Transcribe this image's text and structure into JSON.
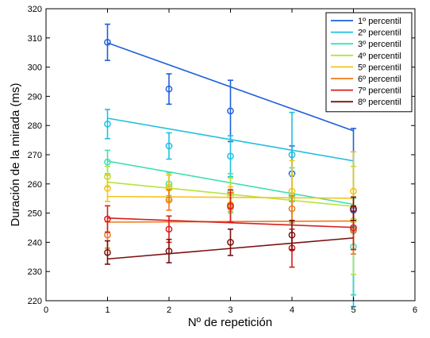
{
  "chart_data": {
    "type": "line",
    "xlabel": "Nº de repetición",
    "ylabel": "Duración de la mirada (ms)",
    "xlim": [
      0,
      6
    ],
    "ylim": [
      220,
      320
    ],
    "xticks": [
      0,
      1,
      2,
      3,
      4,
      5,
      6
    ],
    "yticks": [
      220,
      230,
      240,
      250,
      260,
      270,
      280,
      290,
      300,
      310,
      320
    ],
    "legend_position": "top-right",
    "grid": false,
    "x": [
      1,
      2,
      3,
      4,
      5
    ],
    "series": [
      {
        "name": "1º percentil",
        "color": "#1f5fdc",
        "values": [
          308.5,
          292.5,
          285.0,
          263.5,
          251.0
        ],
        "err_low": [
          302.3,
          287.3,
          274.5,
          254.0,
          222.0
        ],
        "err_high": [
          314.7,
          297.7,
          295.5,
          273.0,
          279.0
        ],
        "fit": [
          308.3,
          278.2
        ]
      },
      {
        "name": "2º percentil",
        "color": "#1fbfe0",
        "values": [
          280.5,
          273.0,
          269.5,
          270.0,
          244.5
        ],
        "err_low": [
          275.5,
          268.5,
          262.5,
          255.5,
          218.0
        ],
        "err_high": [
          285.5,
          277.5,
          276.5,
          284.5,
          271.0
        ],
        "fit": [
          282.5,
          267.9
        ]
      },
      {
        "name": "3º percentil",
        "color": "#3fe0b4",
        "values": [
          267.5,
          260.0,
          257.0,
          256.0,
          238.5
        ],
        "err_low": [
          263.5,
          256.0,
          250.5,
          246.5,
          222.0
        ],
        "err_high": [
          271.5,
          264.0,
          263.5,
          265.5,
          255.0
        ],
        "fit": [
          267.8,
          253.0
        ]
      },
      {
        "name": "4º percentil",
        "color": "#b6e43a",
        "values": [
          262.5,
          259.0,
          256.0,
          255.0,
          247.5
        ],
        "err_low": [
          259.0,
          254.5,
          250.0,
          247.0,
          229.0
        ],
        "err_high": [
          266.0,
          263.5,
          262.0,
          263.0,
          266.0
        ],
        "fit": [
          260.6,
          252.3
        ]
      },
      {
        "name": "5º percentil",
        "color": "#f5c21b",
        "values": [
          258.5,
          258.5,
          253.0,
          257.5,
          257.5
        ],
        "err_low": [
          254.0,
          254.0,
          247.0,
          247.0,
          244.0
        ],
        "err_high": [
          263.0,
          263.0,
          259.0,
          268.0,
          271.0
        ],
        "fit": [
          255.7,
          255.1
        ]
      },
      {
        "name": "6º percentil",
        "color": "#ef7a1a",
        "values": [
          242.5,
          254.5,
          252.0,
          251.5,
          244.0
        ],
        "err_low": [
          238.0,
          251.0,
          247.0,
          247.0,
          236.0
        ],
        "err_high": [
          247.0,
          258.0,
          257.0,
          256.0,
          252.0
        ],
        "fit": [
          246.9,
          247.3
        ]
      },
      {
        "name": "7º percentil",
        "color": "#d81e1e",
        "values": [
          248.0,
          244.5,
          252.5,
          238.0,
          245.0
        ],
        "err_low": [
          243.5,
          240.0,
          247.0,
          231.5,
          237.5
        ],
        "err_high": [
          252.5,
          249.0,
          258.0,
          244.5,
          252.5
        ],
        "fit": [
          248.3,
          245.1
        ]
      },
      {
        "name": "8º percentil",
        "color": "#7a1010",
        "values": [
          236.5,
          237.0,
          240.0,
          242.5,
          251.5
        ],
        "err_low": [
          232.5,
          233.0,
          235.5,
          237.5,
          247.5
        ],
        "err_high": [
          240.5,
          241.0,
          244.5,
          247.5,
          255.5
        ],
        "fit": [
          234.3,
          241.5
        ]
      }
    ]
  }
}
